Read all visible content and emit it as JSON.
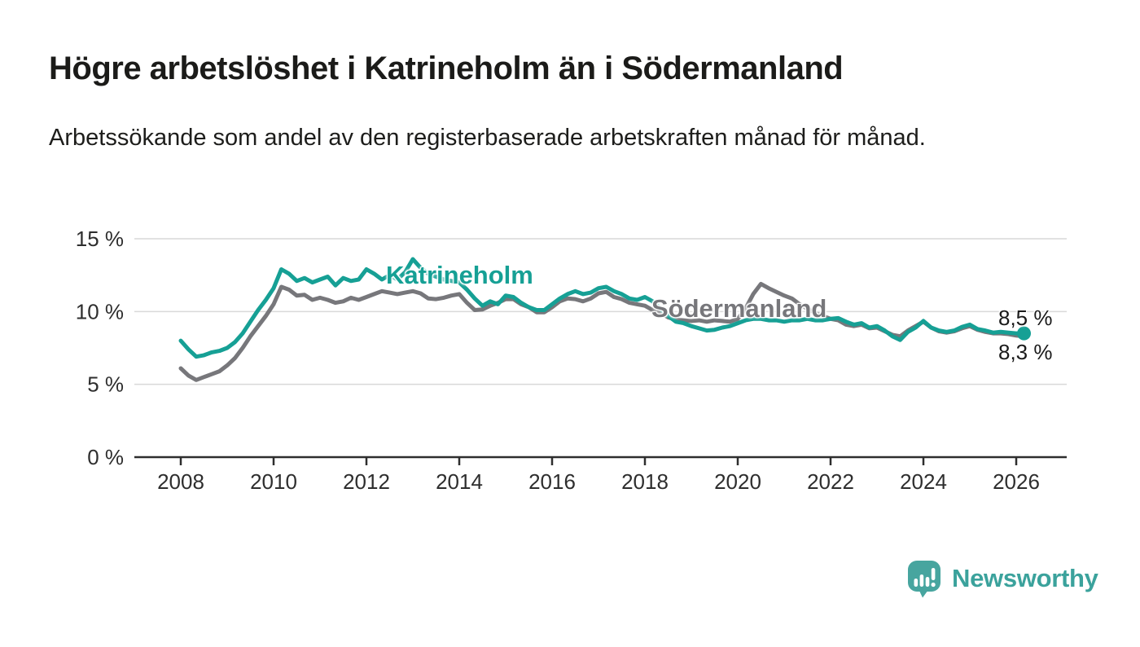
{
  "header": {
    "title": "Högre arbetslöshet i Katrineholm än i Södermanland",
    "subtitle": "Arbetssökande som andel av den registerbaserade arbetskraften månad för månad."
  },
  "branding": {
    "name": "Newsworthy",
    "icon": "newsworthy-bar-chart-bubble-icon",
    "icon_color": "#47a59f",
    "text_color": "#3ba29c"
  },
  "colors": {
    "katrineholm_line": "#16a095",
    "sodermanland_line": "#77777b",
    "gridline": "#d9d9d9",
    "axis": "#2e2e2e",
    "tick_label": "#2e2e2e",
    "title_text": "#1b1b19"
  },
  "chart_data": {
    "type": "line",
    "title": "Högre arbetslöshet i Katrineholm än i Södermanland",
    "subtitle": "Arbetssökande som andel av den registerbaserade arbetskraften månad för månad.",
    "unit": "%",
    "grid": "horizontal",
    "legend": "inline-labels",
    "x_axis": {
      "unit": "year",
      "range": [
        2007.0,
        2027.1
      ],
      "ticks": [
        2008,
        2010,
        2012,
        2014,
        2016,
        2018,
        2020,
        2022,
        2024,
        2026
      ]
    },
    "y_axis": {
      "range": [
        0,
        15.5
      ],
      "tick_values": [
        0,
        5,
        10,
        15
      ],
      "tick_labels": [
        "0 %",
        "5 %",
        "10 %",
        "15 %"
      ]
    },
    "x_start": 2008.0,
    "x_step_years": 0.1666667,
    "series": [
      {
        "name": "Södermanland",
        "color": "#77777b",
        "end_label": "8,3 %",
        "end_value": 8.3,
        "end_marker": false,
        "values": [
          6.1,
          5.6,
          5.3,
          5.5,
          5.7,
          5.9,
          6.3,
          6.8,
          7.5,
          8.3,
          9.0,
          9.7,
          10.5,
          11.7,
          11.5,
          11.1,
          11.15,
          10.8,
          10.95,
          10.8,
          10.6,
          10.7,
          10.95,
          10.8,
          11.0,
          11.2,
          11.4,
          11.3,
          11.2,
          11.3,
          11.4,
          11.25,
          10.9,
          10.85,
          10.95,
          11.1,
          11.2,
          10.6,
          10.1,
          10.15,
          10.4,
          10.6,
          10.85,
          10.85,
          10.5,
          10.3,
          9.95,
          9.95,
          10.3,
          10.7,
          10.9,
          10.85,
          10.7,
          10.9,
          11.25,
          11.35,
          11.0,
          10.85,
          10.6,
          10.5,
          10.4,
          10.1,
          9.9,
          9.6,
          9.45,
          9.4,
          9.35,
          9.4,
          9.3,
          9.4,
          9.35,
          9.3,
          9.5,
          10.2,
          11.2,
          11.9,
          11.6,
          11.35,
          11.1,
          10.9,
          10.5,
          10.2,
          9.9,
          9.7,
          9.5,
          9.4,
          9.1,
          9.0,
          9.1,
          8.85,
          8.9,
          8.65,
          8.4,
          8.3,
          8.7,
          9.0,
          9.3,
          8.9,
          8.65,
          8.55,
          8.65,
          8.85,
          9.0,
          8.75,
          8.6,
          8.5,
          8.5,
          8.45,
          8.35,
          8.3
        ]
      },
      {
        "name": "Katrineholm",
        "color": "#16a095",
        "end_label": "8,5 %",
        "end_value": 8.5,
        "end_marker": true,
        "values": [
          8.0,
          7.4,
          6.9,
          7.0,
          7.2,
          7.3,
          7.5,
          7.9,
          8.5,
          9.3,
          10.1,
          10.8,
          11.6,
          12.9,
          12.6,
          12.1,
          12.3,
          12.0,
          12.2,
          12.4,
          11.8,
          12.3,
          12.1,
          12.2,
          12.9,
          12.6,
          12.2,
          12.5,
          12.2,
          12.7,
          13.6,
          13.0,
          12.6,
          12.4,
          12.2,
          12.1,
          12.0,
          11.5,
          10.9,
          10.4,
          10.7,
          10.5,
          11.1,
          11.0,
          10.6,
          10.3,
          10.1,
          10.1,
          10.5,
          10.9,
          11.2,
          11.4,
          11.2,
          11.3,
          11.6,
          11.7,
          11.4,
          11.2,
          10.9,
          10.8,
          11.0,
          10.7,
          10.2,
          9.7,
          9.3,
          9.2,
          9.0,
          8.85,
          8.7,
          8.75,
          8.9,
          9.0,
          9.2,
          9.4,
          9.5,
          9.5,
          9.4,
          9.4,
          9.3,
          9.4,
          9.4,
          9.5,
          9.4,
          9.4,
          9.5,
          9.55,
          9.3,
          9.1,
          9.2,
          8.9,
          9.0,
          8.7,
          8.3,
          8.05,
          8.6,
          8.9,
          9.35,
          8.9,
          8.7,
          8.6,
          8.7,
          8.95,
          9.1,
          8.8,
          8.7,
          8.55,
          8.6,
          8.55,
          8.5,
          8.5
        ]
      }
    ]
  }
}
